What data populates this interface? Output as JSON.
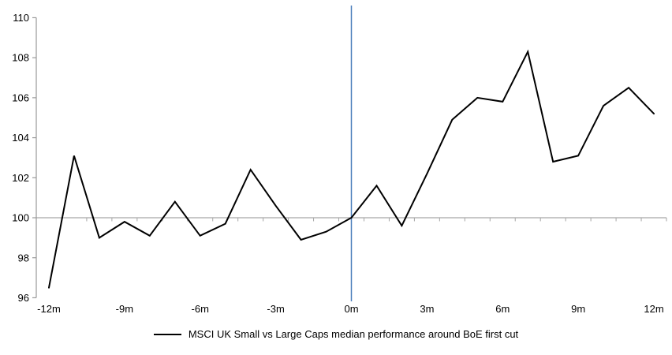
{
  "chart_data": {
    "type": "line",
    "title": "",
    "xlabel": "",
    "ylabel": "",
    "x_months": [
      -12,
      -11,
      -10,
      -9,
      -8,
      -7,
      -6,
      -5,
      -4,
      -3,
      -2,
      -1,
      0,
      1,
      2,
      3,
      4,
      5,
      6,
      7,
      8,
      9,
      10,
      11,
      12
    ],
    "series": [
      {
        "name": "MSCI UK Small vs Large Caps median performance around BoE first cut",
        "color": "#000000",
        "values": [
          96.5,
          103.1,
          99.0,
          99.8,
          99.1,
          100.8,
          99.1,
          99.7,
          102.4,
          100.6,
          98.9,
          99.3,
          100.0,
          101.6,
          99.6,
          102.2,
          104.9,
          106.0,
          105.8,
          108.3,
          102.8,
          103.1,
          105.6,
          106.5,
          105.2
        ]
      }
    ],
    "ylim": [
      96,
      110
    ],
    "y_ticks": [
      96,
      98,
      100,
      102,
      104,
      106,
      108,
      110
    ],
    "x_tick_labels": [
      {
        "month": -12,
        "label": "-12m"
      },
      {
        "month": -9,
        "label": "-9m"
      },
      {
        "month": -6,
        "label": "-6m"
      },
      {
        "month": -3,
        "label": "-3m"
      },
      {
        "month": 0,
        "label": "0m"
      },
      {
        "month": 3,
        "label": "3m"
      },
      {
        "month": 6,
        "label": "6m"
      },
      {
        "month": 9,
        "label": "9m"
      },
      {
        "month": 12,
        "label": "12m"
      }
    ],
    "grid": "off",
    "legend_position": "bottom-center",
    "reference_lines": [
      {
        "orientation": "vertical",
        "at_month": 0,
        "color": "#4A7EBB"
      },
      {
        "orientation": "horizontal",
        "at_value": 100,
        "color": "#A6A6A6"
      }
    ],
    "axis_color": "#A6A6A6",
    "yaxis_color": "#999999",
    "text_color": "#000000"
  }
}
